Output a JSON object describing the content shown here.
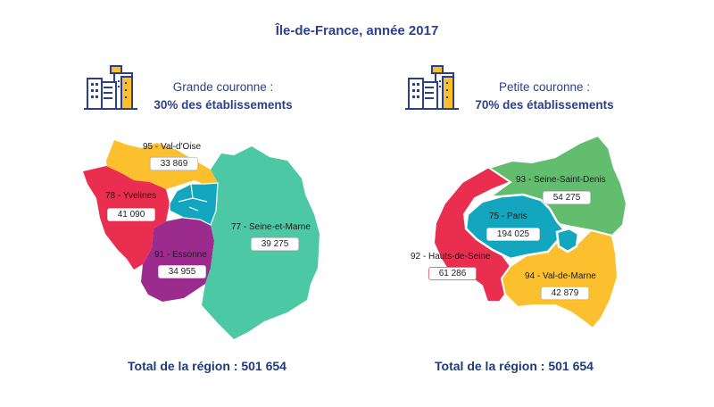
{
  "title": "Île-de-France, année 2017",
  "colors": {
    "title": "#2a3f8f",
    "yellow": "#fcc02e",
    "red": "#ea2e4f",
    "purple": "#9c2b8e",
    "teal": "#4cc8a5",
    "cyan": "#12a7bf",
    "green": "#62be6e"
  },
  "grande": {
    "heading_line1": "Grande couronne :",
    "heading_line2": "30% des établissements",
    "icon": "buildings-icon",
    "departments": [
      {
        "label": "95 - Val-d'Oise",
        "value": "33 869"
      },
      {
        "label": "78 - Yvelines",
        "value": "41 090"
      },
      {
        "label": "77 - Seine-et-Marne",
        "value": "39 275"
      },
      {
        "label": "91 - Essonne",
        "value": "34 955"
      }
    ],
    "total": "Total de la région : 501 654"
  },
  "petite": {
    "heading_line1": "Petite couronne :",
    "heading_line2": "70% des établissements",
    "icon": "buildings-icon",
    "departments": [
      {
        "label": "93 - Seine-Saint-Denis",
        "value": "54 275"
      },
      {
        "label": "75 - Paris",
        "value": "194 025"
      },
      {
        "label": "92 - Hauts-de-Seine",
        "value": "61 286"
      },
      {
        "label": "94 - Val-de-Marne",
        "value": "42 879"
      }
    ],
    "total": "Total de la région : 501 654"
  }
}
